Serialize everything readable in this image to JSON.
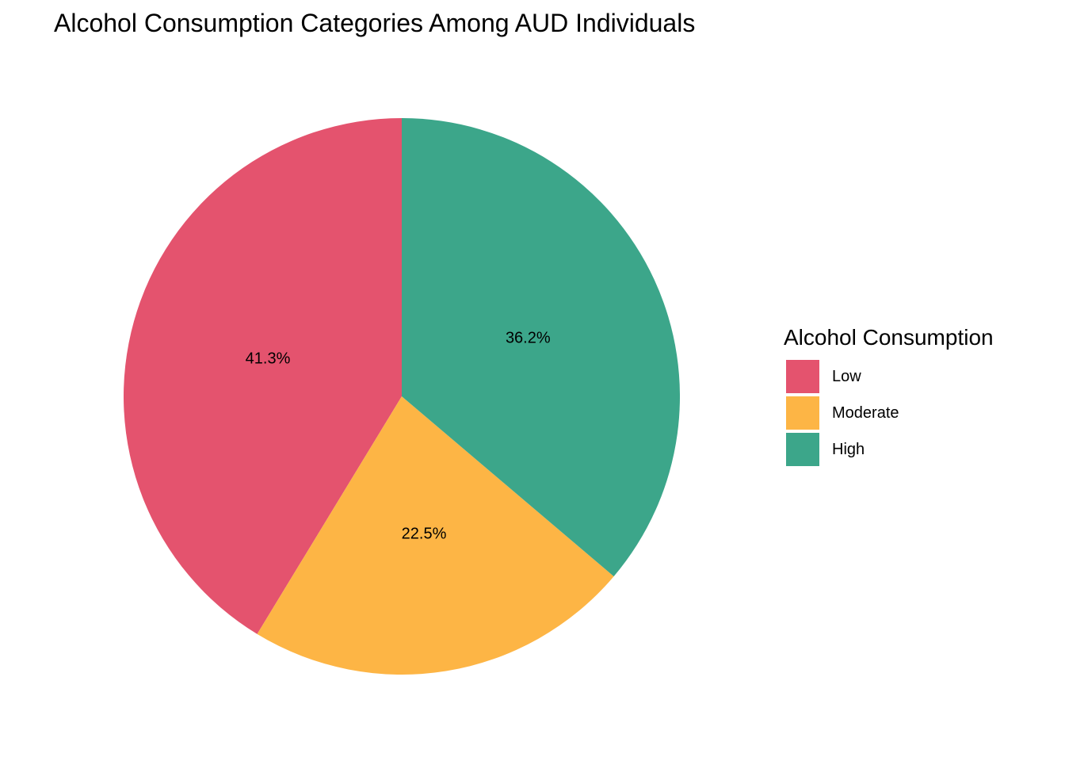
{
  "chart_data": {
    "type": "pie",
    "title": "Alcohol Consumption Categories Among AUD Individuals",
    "legend_title": "Alcohol Consumption",
    "legend_position": "right",
    "slices": [
      {
        "label": "Low",
        "value": 41.3,
        "text": "41.3%",
        "color": "#E4536E"
      },
      {
        "label": "Moderate",
        "value": 22.5,
        "text": "22.5%",
        "color": "#FDB545"
      },
      {
        "label": "High",
        "value": 36.2,
        "text": "36.2%",
        "color": "#3CA68A"
      }
    ]
  }
}
